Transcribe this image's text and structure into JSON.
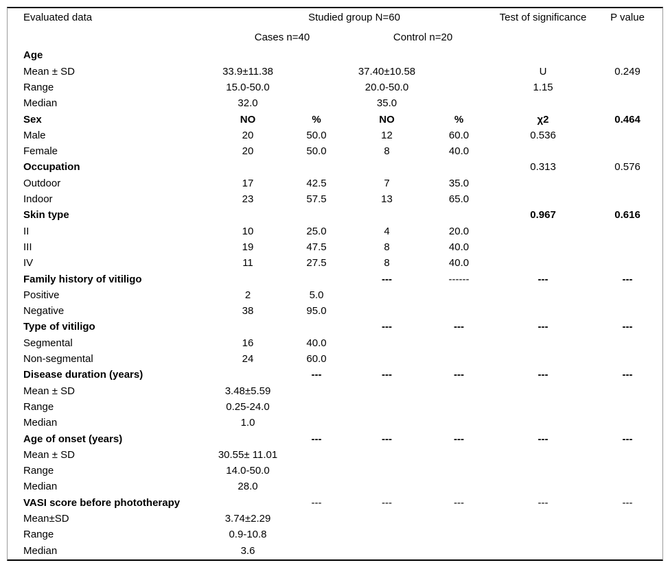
{
  "table": {
    "header": {
      "evaluated_data": "Evaluated data",
      "studied_group": "Studied group N=60",
      "test_of_significance": "Test of significance",
      "p_value": "P value",
      "cases": "Cases n=40",
      "control": "Control n=20"
    },
    "rows": [
      {
        "label": "Age",
        "label_bold": true,
        "cells": [
          "",
          "",
          "",
          "",
          "",
          ""
        ],
        "cells_bold": [
          false,
          false,
          false,
          false,
          false,
          false
        ]
      },
      {
        "label": "Mean ± SD",
        "label_bold": false,
        "cells": [
          "33.9±11.38",
          "",
          "37.40±10.58",
          "",
          "U",
          "0.249"
        ],
        "cells_bold": [
          false,
          false,
          false,
          false,
          false,
          false
        ]
      },
      {
        "label": "Range",
        "label_bold": false,
        "cells": [
          "15.0-50.0",
          "",
          "20.0-50.0",
          "",
          "1.15",
          ""
        ],
        "cells_bold": [
          false,
          false,
          false,
          false,
          false,
          false
        ]
      },
      {
        "label": "Median",
        "label_bold": false,
        "cells": [
          "32.0",
          "",
          "35.0",
          "",
          "",
          ""
        ],
        "cells_bold": [
          false,
          false,
          false,
          false,
          false,
          false
        ]
      },
      {
        "label": "Sex",
        "label_bold": true,
        "cells": [
          "NO",
          "%",
          "NO",
          "%",
          "χ2",
          "0.464"
        ],
        "cells_bold": [
          true,
          true,
          true,
          true,
          true,
          true
        ]
      },
      {
        "label": "Male",
        "label_bold": false,
        "cells": [
          "20",
          "50.0",
          "12",
          "60.0",
          "0.536",
          ""
        ],
        "cells_bold": [
          false,
          false,
          false,
          false,
          false,
          false
        ]
      },
      {
        "label": "Female",
        "label_bold": false,
        "cells": [
          "20",
          "50.0",
          "8",
          "40.0",
          "",
          ""
        ],
        "cells_bold": [
          false,
          false,
          false,
          false,
          false,
          false
        ]
      },
      {
        "label": "Occupation",
        "label_bold": true,
        "cells": [
          "",
          "",
          "",
          "",
          "0.313",
          "0.576"
        ],
        "cells_bold": [
          false,
          false,
          false,
          false,
          false,
          false
        ]
      },
      {
        "label": "Outdoor",
        "label_bold": false,
        "cells": [
          "17",
          "42.5",
          "7",
          "35.0",
          "",
          ""
        ],
        "cells_bold": [
          false,
          false,
          false,
          false,
          false,
          false
        ]
      },
      {
        "label": "Indoor",
        "label_bold": false,
        "cells": [
          "23",
          "57.5",
          "13",
          "65.0",
          "",
          ""
        ],
        "cells_bold": [
          false,
          false,
          false,
          false,
          false,
          false
        ]
      },
      {
        "label": "Skin type",
        "label_bold": true,
        "cells": [
          "",
          "",
          "",
          "",
          "0.967",
          "0.616"
        ],
        "cells_bold": [
          false,
          false,
          false,
          false,
          true,
          true
        ]
      },
      {
        "label": "II",
        "label_bold": false,
        "cells": [
          "10",
          "25.0",
          "4",
          "20.0",
          "",
          ""
        ],
        "cells_bold": [
          false,
          false,
          false,
          false,
          false,
          false
        ]
      },
      {
        "label": "III",
        "label_bold": false,
        "cells": [
          "19",
          "47.5",
          "8",
          "40.0",
          "",
          ""
        ],
        "cells_bold": [
          false,
          false,
          false,
          false,
          false,
          false
        ]
      },
      {
        "label": "IV",
        "label_bold": false,
        "cells": [
          "11",
          "27.5",
          "8",
          "40.0",
          "",
          ""
        ],
        "cells_bold": [
          false,
          false,
          false,
          false,
          false,
          false
        ]
      },
      {
        "label": "Family history of vitiligo",
        "label_bold": true,
        "cells": [
          "",
          "",
          "---",
          "------",
          "---",
          "---"
        ],
        "cells_bold": [
          false,
          false,
          true,
          false,
          true,
          true
        ]
      },
      {
        "label": "Positive",
        "label_bold": false,
        "cells": [
          "2",
          "5.0",
          "",
          "",
          "",
          ""
        ],
        "cells_bold": [
          false,
          false,
          false,
          false,
          false,
          false
        ]
      },
      {
        "label": "Negative",
        "label_bold": false,
        "cells": [
          "38",
          "95.0",
          "",
          "",
          "",
          ""
        ],
        "cells_bold": [
          false,
          false,
          false,
          false,
          false,
          false
        ]
      },
      {
        "label": "Type of vitiligo",
        "label_bold": true,
        "cells": [
          "",
          "",
          "---",
          "---",
          "---",
          "---"
        ],
        "cells_bold": [
          false,
          false,
          true,
          true,
          true,
          true
        ]
      },
      {
        "label": "Segmental",
        "label_bold": false,
        "cells": [
          "16",
          "40.0",
          "",
          "",
          "",
          ""
        ],
        "cells_bold": [
          false,
          false,
          false,
          false,
          false,
          false
        ]
      },
      {
        "label": "Non-segmental",
        "label_bold": false,
        "cells": [
          "24",
          "60.0",
          "",
          "",
          "",
          ""
        ],
        "cells_bold": [
          false,
          false,
          false,
          false,
          false,
          false
        ]
      },
      {
        "label": "Disease duration (years)",
        "label_bold": true,
        "cells": [
          "",
          "---",
          "---",
          "---",
          "---",
          "---"
        ],
        "cells_bold": [
          false,
          true,
          true,
          true,
          true,
          true
        ]
      },
      {
        "label": "Mean ± SD",
        "label_bold": false,
        "cells": [
          "3.48±5.59",
          "",
          "",
          "",
          "",
          ""
        ],
        "cells_bold": [
          false,
          false,
          false,
          false,
          false,
          false
        ]
      },
      {
        "label": "Range",
        "label_bold": false,
        "cells": [
          "0.25-24.0",
          "",
          "",
          "",
          "",
          ""
        ],
        "cells_bold": [
          false,
          false,
          false,
          false,
          false,
          false
        ]
      },
      {
        "label": "Median",
        "label_bold": false,
        "cells": [
          "1.0",
          "",
          "",
          "",
          "",
          ""
        ],
        "cells_bold": [
          false,
          false,
          false,
          false,
          false,
          false
        ]
      },
      {
        "label": "Age of onset (years)",
        "label_bold": true,
        "cells": [
          "",
          "---",
          "---",
          "---",
          "---",
          "---"
        ],
        "cells_bold": [
          false,
          true,
          true,
          true,
          true,
          true
        ]
      },
      {
        "label": "Mean ± SD",
        "label_bold": false,
        "cells": [
          "30.55± 11.01",
          "",
          "",
          "",
          "",
          ""
        ],
        "cells_bold": [
          false,
          false,
          false,
          false,
          false,
          false
        ]
      },
      {
        "label": "Range",
        "label_bold": false,
        "cells": [
          "14.0-50.0",
          "",
          "",
          "",
          "",
          ""
        ],
        "cells_bold": [
          false,
          false,
          false,
          false,
          false,
          false
        ]
      },
      {
        "label": "Median",
        "label_bold": false,
        "cells": [
          "28.0",
          "",
          "",
          "",
          "",
          ""
        ],
        "cells_bold": [
          false,
          false,
          false,
          false,
          false,
          false
        ]
      },
      {
        "label": "VASI score before phototherapy",
        "label_bold": true,
        "cells": [
          "",
          "---",
          "---",
          "---",
          "---",
          "---"
        ],
        "cells_bold": [
          false,
          false,
          false,
          false,
          false,
          false
        ]
      },
      {
        "label": "Mean±SD",
        "label_bold": false,
        "cells": [
          "3.74±2.29",
          "",
          "",
          "",
          "",
          ""
        ],
        "cells_bold": [
          false,
          false,
          false,
          false,
          false,
          false
        ]
      },
      {
        "label": "Range",
        "label_bold": false,
        "cells": [
          "0.9-10.8",
          "",
          "",
          "",
          "",
          ""
        ],
        "cells_bold": [
          false,
          false,
          false,
          false,
          false,
          false
        ]
      },
      {
        "label": "Median",
        "label_bold": false,
        "cells": [
          "3.6",
          "",
          "",
          "",
          "",
          ""
        ],
        "cells_bold": [
          false,
          false,
          false,
          false,
          false,
          false
        ]
      }
    ]
  }
}
